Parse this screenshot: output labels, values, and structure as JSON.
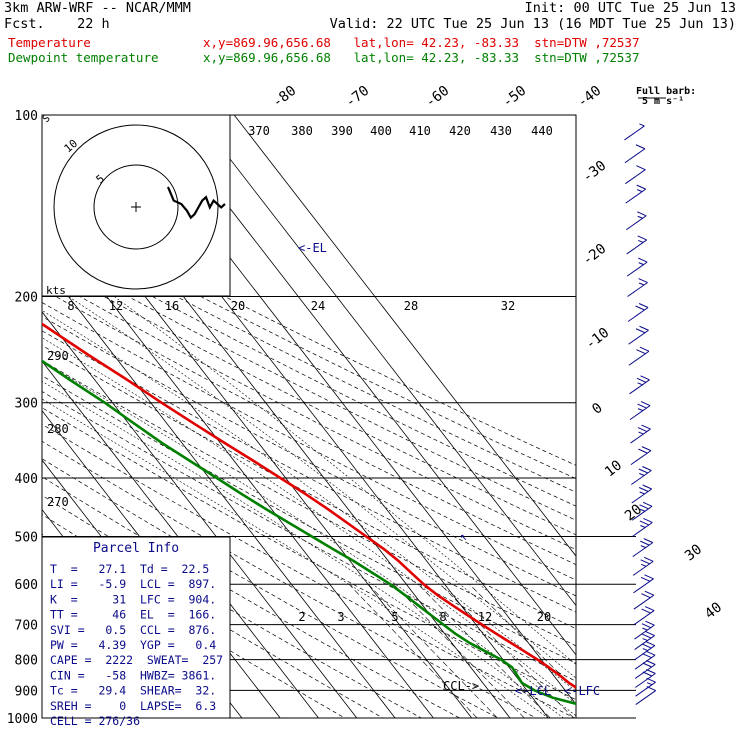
{
  "header": {
    "model": "3km ARW-WRF -- NCAR/MMM",
    "init": "Init: 00 UTC Tue 25 Jun 13",
    "fcst": "Fcst.    22 h",
    "valid": "Valid: 22 UTC Tue 25 Jun 13 (16 MDT Tue 25 Jun 13)",
    "lines": [
      {
        "name": "Temperature",
        "info": "x,y=869.96,656.68   lat,lon= 42.23, -83.33  stn=DTW ,72537",
        "color": "#e00000"
      },
      {
        "name": "Dewpoint temperature",
        "info": "x,y=869.96,656.68   lat,lon= 42.23, -83.33  stn=DTW ,72537",
        "color": "#008000"
      }
    ]
  },
  "full_barb": {
    "title": "Full barb:",
    "value": "5 m s⁻¹"
  },
  "chart_data": {
    "type": "line",
    "title": "",
    "pressure_levels": [
      100,
      200,
      300,
      400,
      500,
      600,
      700,
      800,
      900,
      1000
    ],
    "temp_labels": [
      "-80",
      "-70",
      "-60",
      "-50",
      "-40",
      "-30",
      "-20",
      "-10",
      "0",
      "10",
      "20",
      "30",
      "40"
    ],
    "theta_labels": [
      "370",
      "380",
      "390",
      "400",
      "410",
      "420",
      "430",
      "440"
    ],
    "theta_side_labels": [
      "290",
      "280",
      "270"
    ],
    "mixing_ratio_labels": [
      "2",
      "3",
      "5",
      "8",
      "12",
      "20"
    ],
    "hodo": {
      "ring_labels": [
        "10",
        "5"
      ],
      "unit": "kts",
      "speed_ticks": [
        "8",
        "12",
        "16",
        "20",
        "24",
        "28",
        "32"
      ],
      "trace": [
        [
          0,
          0
        ],
        [
          3,
          -4
        ],
        [
          7,
          -5
        ],
        [
          10,
          -7
        ],
        [
          12,
          -9
        ],
        [
          14,
          -8
        ],
        [
          16,
          -6
        ],
        [
          18,
          -4
        ],
        [
          20,
          -3
        ],
        [
          22,
          -6
        ],
        [
          24,
          -4
        ],
        [
          26,
          -5
        ],
        [
          28,
          -6
        ],
        [
          30,
          -5
        ]
      ]
    },
    "series": [
      {
        "name": "Temperature",
        "color": "#e00000",
        "points": [
          [
            1000,
            31.5
          ],
          [
            975,
            29.5
          ],
          [
            950,
            27.2
          ],
          [
            925,
            25.5
          ],
          [
            900,
            24.0
          ],
          [
            875,
            22.5
          ],
          [
            850,
            21.6
          ],
          [
            825,
            20.4
          ],
          [
            800,
            19.0
          ],
          [
            775,
            17.2
          ],
          [
            750,
            15.4
          ],
          [
            725,
            13.5
          ],
          [
            700,
            11.6
          ],
          [
            675,
            9.7
          ],
          [
            650,
            7.8
          ],
          [
            625,
            5.9
          ],
          [
            600,
            4.5
          ],
          [
            575,
            3.6
          ],
          [
            550,
            2.7
          ],
          [
            525,
            1.3
          ],
          [
            500,
            -0.8
          ],
          [
            475,
            -3.0
          ],
          [
            450,
            -5.3
          ],
          [
            425,
            -8.1
          ],
          [
            400,
            -11.4
          ],
          [
            375,
            -14.9
          ],
          [
            350,
            -18.8
          ],
          [
            325,
            -22.9
          ],
          [
            300,
            -27.2
          ],
          [
            275,
            -31.5
          ],
          [
            250,
            -36.6
          ],
          [
            225,
            -41.8
          ],
          [
            200,
            -47.8
          ],
          [
            175,
            -53.6
          ],
          [
            160,
            -57.6
          ],
          [
            150,
            -58.5
          ],
          [
            140,
            -55.5
          ],
          [
            130,
            -52.2
          ],
          [
            120,
            -48.2
          ],
          [
            110,
            -43.5
          ],
          [
            100,
            -39.5
          ]
        ]
      },
      {
        "name": "Dewpoint temperature",
        "color": "#008000",
        "points": [
          [
            1000,
            21.5
          ],
          [
            975,
            21.8
          ],
          [
            950,
            20.8
          ],
          [
            925,
            15.2
          ],
          [
            900,
            12.0
          ],
          [
            875,
            10.2
          ],
          [
            850,
            10.5
          ],
          [
            825,
            10.8
          ],
          [
            800,
            9.5
          ],
          [
            775,
            7.0
          ],
          [
            750,
            4.6
          ],
          [
            725,
            2.8
          ],
          [
            700,
            1.5
          ],
          [
            675,
            0.2
          ],
          [
            650,
            -1.2
          ],
          [
            625,
            -2.6
          ],
          [
            600,
            -4.2
          ],
          [
            575,
            -6.5
          ],
          [
            550,
            -9.0
          ],
          [
            525,
            -12.0
          ],
          [
            500,
            -15.0
          ],
          [
            475,
            -18.2
          ],
          [
            450,
            -21.5
          ],
          [
            425,
            -24.8
          ],
          [
            400,
            -28.0
          ],
          [
            375,
            -31.5
          ],
          [
            350,
            -35.2
          ],
          [
            325,
            -38.5
          ],
          [
            300,
            -42.0
          ],
          [
            275,
            -46.5
          ],
          [
            250,
            -51.0
          ],
          [
            225,
            -56.0
          ],
          [
            200,
            -61.5
          ],
          [
            175,
            -66.5
          ],
          [
            160,
            -69.0
          ],
          [
            150,
            -70.5
          ],
          [
            130,
            -74.5
          ],
          [
            115,
            -78.5
          ],
          [
            100,
            -82.0
          ]
        ]
      }
    ],
    "wind_barbs": [
      {
        "p": 950,
        "speed": 10
      },
      {
        "p": 920,
        "speed": 15
      },
      {
        "p": 890,
        "speed": 20
      },
      {
        "p": 860,
        "speed": 20
      },
      {
        "p": 830,
        "speed": 20
      },
      {
        "p": 800,
        "speed": 25
      },
      {
        "p": 770,
        "speed": 25
      },
      {
        "p": 740,
        "speed": 25
      },
      {
        "p": 700,
        "speed": 20
      },
      {
        "p": 660,
        "speed": 20
      },
      {
        "p": 620,
        "speed": 20
      },
      {
        "p": 580,
        "speed": 25
      },
      {
        "p": 540,
        "speed": 25
      },
      {
        "p": 500,
        "speed": 25
      },
      {
        "p": 470,
        "speed": 25
      },
      {
        "p": 440,
        "speed": 25
      },
      {
        "p": 410,
        "speed": 25
      },
      {
        "p": 380,
        "speed": 20
      },
      {
        "p": 350,
        "speed": 25
      },
      {
        "p": 320,
        "speed": 25
      },
      {
        "p": 290,
        "speed": 25
      },
      {
        "p": 260,
        "speed": 20
      },
      {
        "p": 240,
        "speed": 20
      },
      {
        "p": 220,
        "speed": 20
      },
      {
        "p": 200,
        "speed": 15
      },
      {
        "p": 185,
        "speed": 15
      },
      {
        "p": 170,
        "speed": 15
      },
      {
        "p": 155,
        "speed": 15
      },
      {
        "p": 140,
        "speed": 15
      },
      {
        "p": 130,
        "speed": 10
      },
      {
        "p": 120,
        "speed": 10
      },
      {
        "p": 110,
        "speed": 5
      }
    ],
    "markers": [
      {
        "label": "<-EL",
        "p": 166
      },
      {
        "label": "<-LCL",
        "p": 897
      },
      {
        "label": "<-LFC",
        "p": 904
      },
      {
        "label": "CCL->",
        "p": 876
      }
    ]
  },
  "parcel": {
    "title": "Parcel Info",
    "rows": [
      "T  =   27.1  Td =  22.5",
      "LI =   -5.9  LCL =  897.",
      "K  =     31  LFC =  904.",
      "TT =     46  EL  =  166.",
      "SVI =   0.5  CCL =  876.",
      "PW =   4.39  YGP =   0.4",
      "CAPE =  2222  SWEAT=  257",
      "CIN =   -58  HWBZ= 3861.",
      "Tc =   29.4  SHEAR=  32.",
      "SREH =    0  LAPSE=  6.3",
      "CELL = 276/36"
    ]
  },
  "colors": {
    "temperature": "#e00000",
    "dewpoint": "#008000",
    "labels": "#0a0a8a",
    "grid": "#000000"
  }
}
